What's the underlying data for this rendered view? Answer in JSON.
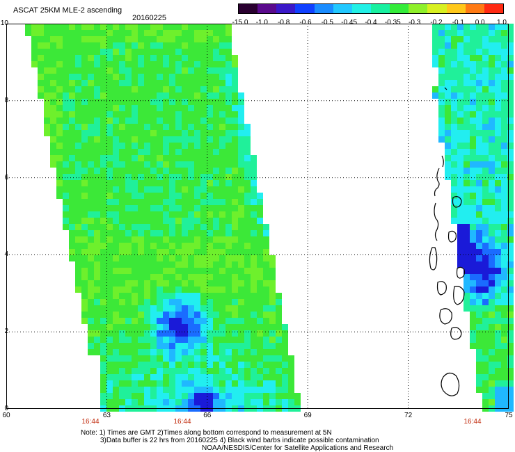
{
  "header": {
    "title": "ASCAT 25KM MLE-2 ascending",
    "date": "20160225"
  },
  "colorbar": {
    "labels": [
      "-15.0",
      "-1.0",
      "-0.8",
      "-0.6",
      "-0.5",
      "-0.45",
      "-0.4",
      "-0.35",
      "-0.3",
      "-0.2",
      "-0.1",
      "0.0",
      "1.0"
    ],
    "colors": [
      "#2a0030",
      "#5a0a8c",
      "#3a18c8",
      "#1040ff",
      "#1a8cff",
      "#22c8ff",
      "#22f0e6",
      "#18f0a0",
      "#34ec3a",
      "#8ef02a",
      "#d8f020",
      "#ffc81a",
      "#ff7a14",
      "#ff2a12"
    ]
  },
  "axes": {
    "y_ticks": [
      "0",
      "2",
      "4",
      "6",
      "8",
      "10"
    ],
    "x_ticks": [
      "60",
      "63",
      "66",
      "69",
      "72",
      "75"
    ],
    "time_labels": [
      "16:44",
      "16:44",
      "16:44"
    ]
  },
  "notes": {
    "line1": "Note: 1) Times are GMT 2)Times along bottom correspond to measurement at 5N",
    "line2": "3)Data buffer is 22 hrs from 20160225 4) Black wind barbs indicate possible contamination",
    "line3": "NOAA/NESDIS/Center for Satellite Applications and Research"
  },
  "map": {
    "lon_range": [
      60,
      75
    ],
    "lat_range": [
      0,
      10
    ],
    "gridlines": true
  }
}
